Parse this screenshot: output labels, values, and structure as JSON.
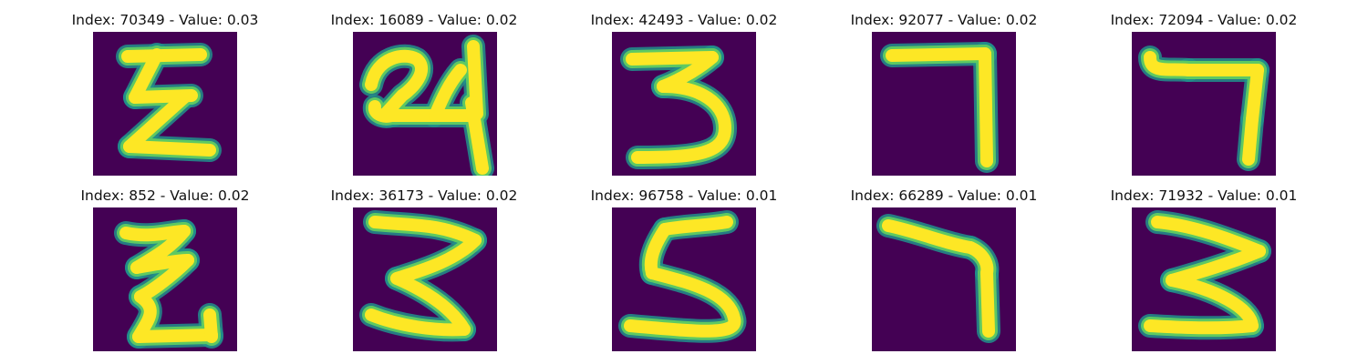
{
  "colors": {
    "background": "#440154",
    "edge": "#21918c",
    "mid": "#5ec962",
    "stroke": "#fde725"
  },
  "panels": [
    {
      "title": "Index: 70349 - Value: 0.03"
    },
    {
      "title": "Index: 16089 - Value: 0.02"
    },
    {
      "title": "Index: 42493 - Value: 0.02"
    },
    {
      "title": "Index: 92077 - Value: 0.02"
    },
    {
      "title": "Index: 72094 - Value: 0.02"
    },
    {
      "title": "Index: 852 - Value: 0.02"
    },
    {
      "title": "Index: 36173 - Value: 0.02"
    },
    {
      "title": "Index: 96758 - Value: 0.01"
    },
    {
      "title": "Index: 66289 - Value: 0.01"
    },
    {
      "title": "Index: 71932 - Value: 0.01"
    }
  ]
}
